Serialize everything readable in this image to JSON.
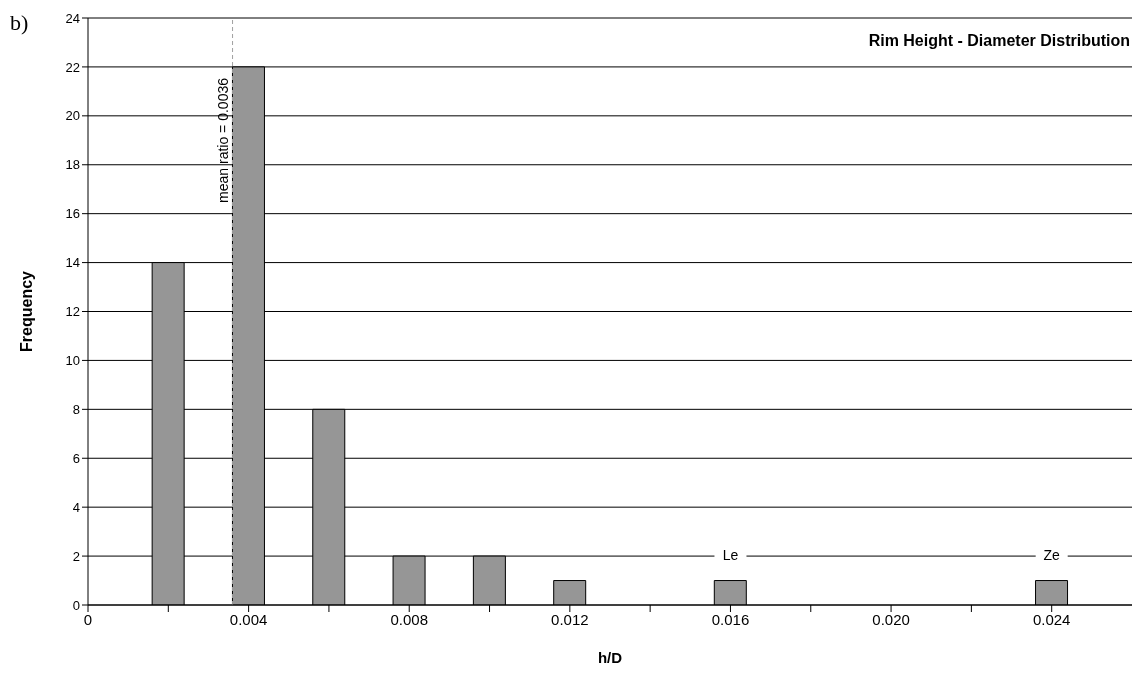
{
  "chart_data": {
    "type": "bar",
    "title": "Rim Height - Diameter Distribution",
    "xlabel": "h/D",
    "ylabel": "Frequency",
    "x": [
      0.002,
      0.004,
      0.006,
      0.008,
      0.01,
      0.012,
      0.014,
      0.016,
      0.018,
      0.02,
      0.022,
      0.024
    ],
    "values": [
      14,
      22,
      8,
      2,
      2,
      1,
      0,
      1,
      0,
      0,
      0,
      1
    ],
    "color": "#969696",
    "xlim": [
      0,
      0.026
    ],
    "xticks": [
      0,
      {
        "value": 0.002,
        "label": null
      },
      {
        "value": 0.004,
        "label": "0.004"
      },
      {
        "value": 0.006,
        "label": null
      },
      {
        "value": 0.008,
        "label": "0.008"
      },
      {
        "value": 0.01,
        "label": null
      },
      {
        "value": 0.012,
        "label": "0.012"
      },
      {
        "value": 0.014,
        "label": null
      },
      {
        "value": 0.016,
        "label": "0.016"
      },
      {
        "value": 0.018,
        "label": null
      },
      {
        "value": 0.02,
        "label": "0.020"
      },
      {
        "value": 0.022,
        "label": null
      },
      {
        "value": 0.024,
        "label": "0.024"
      }
    ],
    "ylim": [
      0,
      24
    ],
    "yticks": [
      0,
      2,
      4,
      6,
      8,
      10,
      12,
      14,
      16,
      18,
      20,
      22,
      24
    ],
    "grid": "y",
    "ref_lines": [
      {
        "axis": "x",
        "value": 0.0036,
        "label": "mean ratio = 0.0036",
        "color": "#a0a0a0",
        "line_style": "dashed"
      }
    ],
    "annotations": [
      "b)",
      {
        "text": "Le",
        "x": 0.016,
        "y": 1
      },
      {
        "text": "Ze",
        "x": 0.024,
        "y": 1
      }
    ]
  }
}
